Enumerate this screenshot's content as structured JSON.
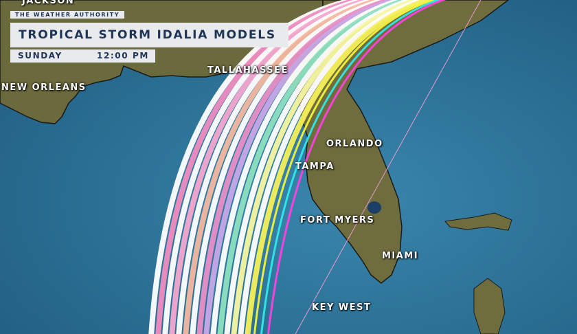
{
  "header": {
    "brand": "THE WEATHER AUTHORITY",
    "title": "TROPICAL STORM IDALIA MODELS",
    "day": "SUNDAY",
    "time": "12:00 PM"
  },
  "cities": [
    {
      "name": "JACKSON"
    },
    {
      "name": "NEW ORLEANS"
    },
    {
      "name": "TALLAHASSEE"
    },
    {
      "name": "ORLANDO"
    },
    {
      "name": "TAMPA"
    },
    {
      "name": "FORT MYERS"
    },
    {
      "name": "MIAMI"
    },
    {
      "name": "KEY WEST"
    }
  ],
  "colors": {
    "ocean": "#2a6e93",
    "land": "#6b6a3c",
    "panel": "#e9eaec",
    "panel_text": "#1e3555",
    "track_colors": [
      "#ffffff",
      "#f08cc0",
      "#ffffff",
      "#f6a8d0",
      "#ffffff",
      "#f4b8a0",
      "#ffffff",
      "#e88fc6",
      "#c8a8e8",
      "#ffffff",
      "#8ee0c0",
      "#ffffff",
      "#f7f7a0",
      "#ffffff",
      "#f6f05a",
      "#f2f23a",
      "#30e8e8",
      "#ff40e0"
    ]
  }
}
